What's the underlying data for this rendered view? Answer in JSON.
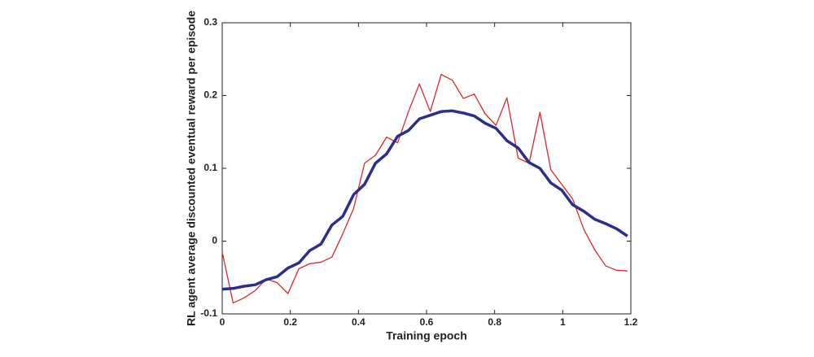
{
  "chart_data": {
    "type": "line",
    "xlabel": "Training epoch",
    "ylabel": "RL agent average discounted eventual reward per episode",
    "x": [
      0,
      0.032,
      0.064,
      0.097,
      0.129,
      0.161,
      0.193,
      0.225,
      0.257,
      0.29,
      0.322,
      0.354,
      0.386,
      0.418,
      0.45,
      0.483,
      0.515,
      0.547,
      0.579,
      0.611,
      0.643,
      0.676,
      0.708,
      0.74,
      0.772,
      0.804,
      0.836,
      0.869,
      0.901,
      0.933,
      0.965,
      0.997,
      1.029,
      1.062,
      1.094,
      1.126,
      1.158,
      1.19
    ],
    "series": [
      {
        "color": "#d42a2a",
        "values": [
          -0.015,
          -0.085,
          -0.078,
          -0.068,
          -0.052,
          -0.057,
          -0.072,
          -0.038,
          -0.031,
          -0.029,
          -0.022,
          0.01,
          0.045,
          0.107,
          0.118,
          0.143,
          0.135,
          0.178,
          0.216,
          0.178,
          0.229,
          0.221,
          0.196,
          0.202,
          0.175,
          0.159,
          0.197,
          0.114,
          0.107,
          0.177,
          0.098,
          0.078,
          0.058,
          0.016,
          -0.012,
          -0.034,
          -0.04,
          -0.041
        ]
      },
      {
        "color": "#2b2f8a",
        "values": [
          -0.066,
          -0.065,
          -0.062,
          -0.06,
          -0.053,
          -0.049,
          -0.037,
          -0.03,
          -0.013,
          -0.004,
          0.022,
          0.034,
          0.064,
          0.078,
          0.107,
          0.12,
          0.144,
          0.152,
          0.168,
          0.173,
          0.178,
          0.179,
          0.176,
          0.172,
          0.162,
          0.155,
          0.138,
          0.128,
          0.108,
          0.1,
          0.08,
          0.07,
          0.05,
          0.041,
          0.03,
          0.024,
          0.017,
          0.007
        ]
      }
    ],
    "xlim": [
      0,
      1.2
    ],
    "xticks": [
      0,
      0.2,
      0.4,
      0.6,
      0.8,
      1,
      1.2
    ],
    "ylim": [
      -0.1,
      0.3
    ],
    "yticks": [
      -0.1,
      0,
      0.1,
      0.2,
      0.3
    ],
    "grid": false
  }
}
